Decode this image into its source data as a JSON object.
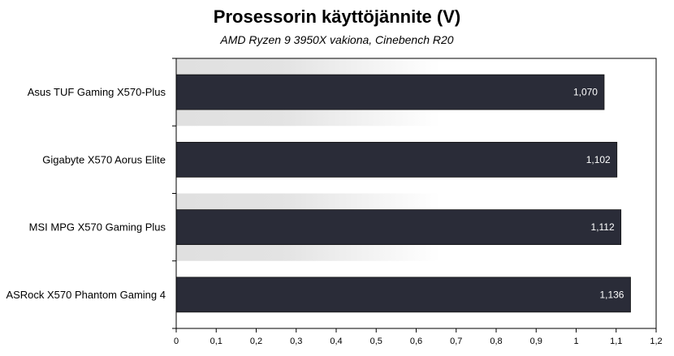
{
  "chart_data": {
    "type": "bar",
    "orientation": "horizontal",
    "title": "Prosessorin käyttöjännite (V)",
    "subtitle": "AMD Ryzen 9 3950X vakiona, Cinebench R20",
    "categories": [
      "Asus TUF Gaming X570-Plus",
      "Gigabyte X570 Aorus Elite",
      "MSI MPG X570 Gaming Plus",
      "ASRock X570 Phantom Gaming 4"
    ],
    "values": [
      1.07,
      1.102,
      1.112,
      1.136
    ],
    "data_labels": [
      "1,070",
      "1,102",
      "1,112",
      "1,136"
    ],
    "xlim": [
      0,
      1.2
    ],
    "xticks": [
      0,
      0.1,
      0.2,
      0.3,
      0.4,
      0.5,
      0.6,
      0.7,
      0.8,
      0.9,
      1,
      1.1,
      1.2
    ],
    "xtick_labels": [
      "0",
      "0,1",
      "0,2",
      "0,3",
      "0,4",
      "0,5",
      "0,6",
      "0,7",
      "0,8",
      "0,9",
      "1",
      "1,1",
      "1,2"
    ],
    "grid": false,
    "bar_color": "#2a2c38",
    "plot_background": "gradient light gray to white"
  }
}
